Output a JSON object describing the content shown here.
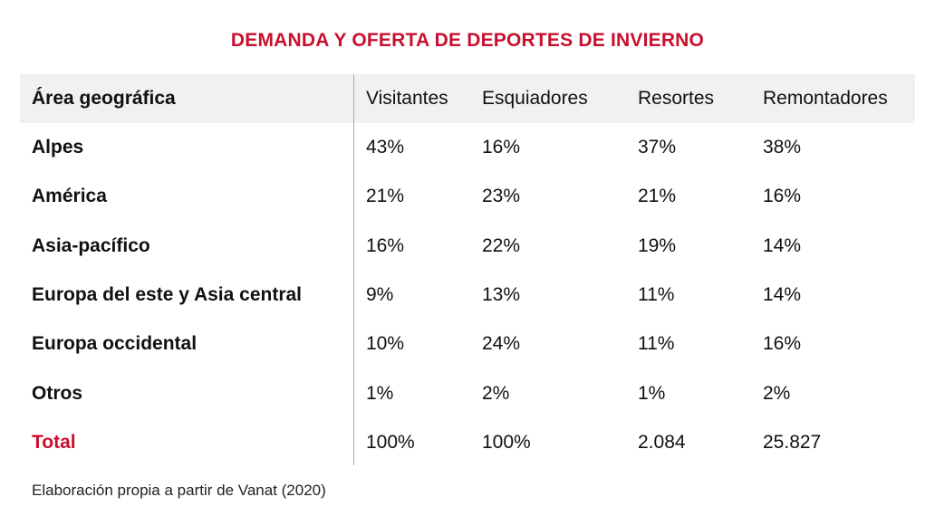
{
  "title": "DEMANDA Y OFERTA DE DEPORTES DE INVIERNO",
  "table": {
    "header": [
      "Área geográfica",
      "Visitantes",
      "Esquiadores",
      "Resortes",
      "Remontadores"
    ],
    "rows": [
      [
        "Alpes",
        "43%",
        "16%",
        "37%",
        "38%"
      ],
      [
        "América",
        "21%",
        "23%",
        "21%",
        "16%"
      ],
      [
        "Asia-pacífico",
        "16%",
        "22%",
        "19%",
        "14%"
      ],
      [
        "Europa del este y Asia central",
        "9%",
        "13%",
        "11%",
        "14%"
      ],
      [
        "Europa occidental",
        "10%",
        "24%",
        "11%",
        "16%"
      ],
      [
        "Otros",
        "1%",
        "2%",
        "1%",
        "2%"
      ],
      [
        "Total",
        "100%",
        "100%",
        "2.084",
        "25.827"
      ]
    ]
  },
  "note": "Elaboración propia a partir de Vanat (2020)"
}
